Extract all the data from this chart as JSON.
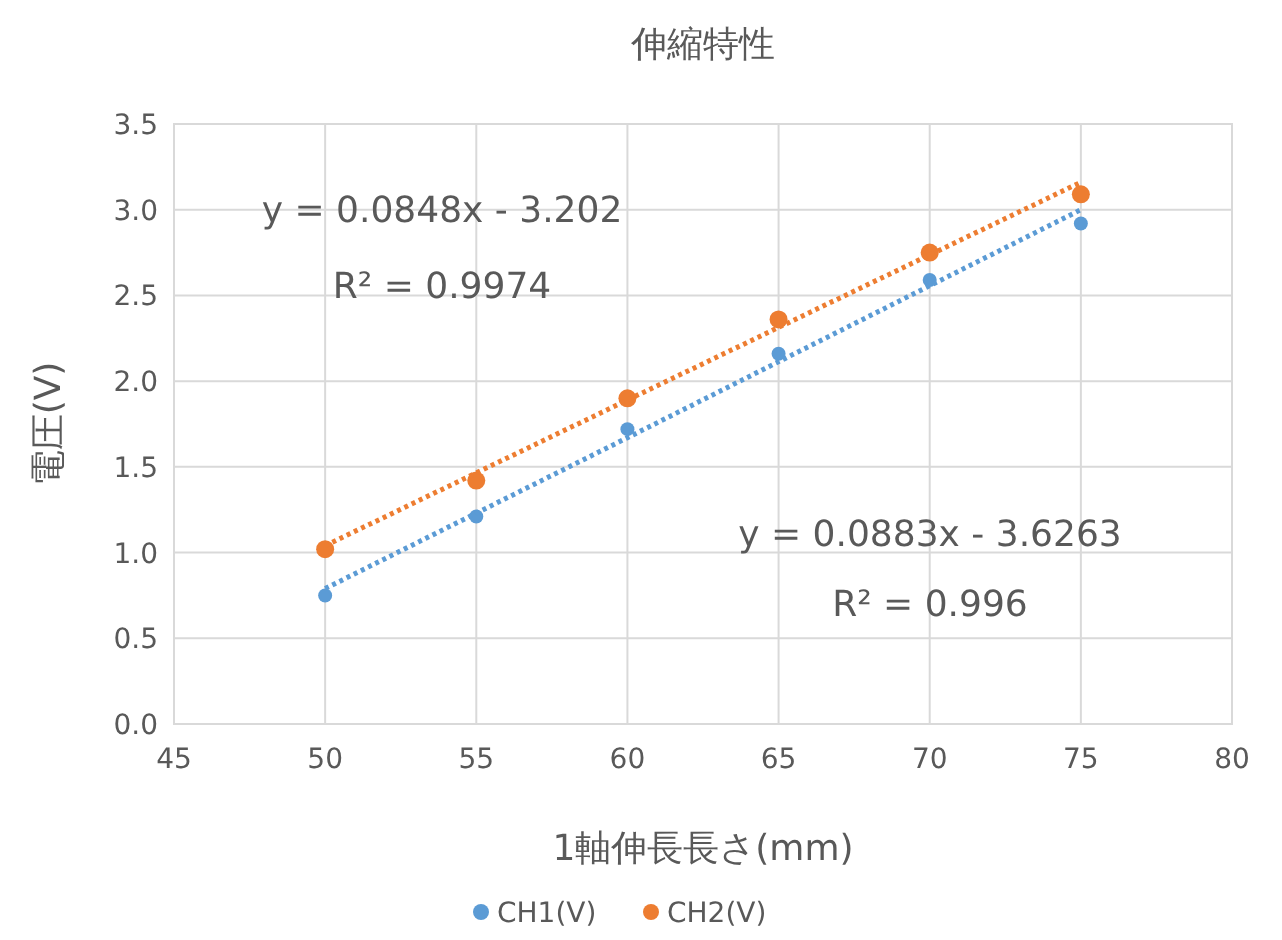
{
  "chart_data": {
    "type": "scatter",
    "title": "伸縮特性",
    "xlabel": "1軸伸長長さ(mm)",
    "ylabel": "電圧(V)",
    "xlim": [
      45,
      80
    ],
    "xticks": [
      45,
      50,
      55,
      60,
      65,
      70,
      75,
      80
    ],
    "ylim": [
      0,
      3.5
    ],
    "yticks": [
      {
        "value": 0,
        "label": "0.0"
      },
      {
        "value": 0.5,
        "label": "0.5"
      },
      {
        "value": 1,
        "label": "1.0"
      },
      {
        "value": 1.5,
        "label": "1.5"
      },
      {
        "value": 2,
        "label": "2.0"
      },
      {
        "value": 2.5,
        "label": "2.5"
      },
      {
        "value": 3,
        "label": "3.0"
      },
      {
        "value": 3.5,
        "label": "3.5"
      }
    ],
    "grid": true,
    "legend": "bottom",
    "marker": "circle",
    "x": [
      50,
      55,
      60,
      65,
      70,
      75
    ],
    "series": [
      {
        "name": "CH1(V)",
        "color": "#5b9bd5",
        "values": [
          0.75,
          1.21,
          1.72,
          2.16,
          2.59,
          2.92
        ]
      },
      {
        "name": "CH2(V)",
        "color": "#ed7d31",
        "values": [
          1.02,
          1.42,
          1.9,
          2.36,
          2.75,
          3.09
        ]
      },
      {
        "type": "line",
        "color": "#5b9bd5",
        "marker": "none",
        "line_style": "dotted",
        "x": [
          50,
          60,
          75
        ],
        "values": [
          0.79,
          1.67,
          3.0
        ]
      },
      {
        "type": "line",
        "color": "#ed7d31",
        "marker": "none",
        "line_style": "dotted",
        "x": [
          50,
          60,
          75
        ],
        "values": [
          1.04,
          1.89,
          3.16
        ]
      }
    ],
    "annotations": [
      "y = 0.0848x - 3.202",
      "R² = 0.9974",
      "y = 0.0883x - 3.6263",
      "R² = 0.996"
    ]
  }
}
